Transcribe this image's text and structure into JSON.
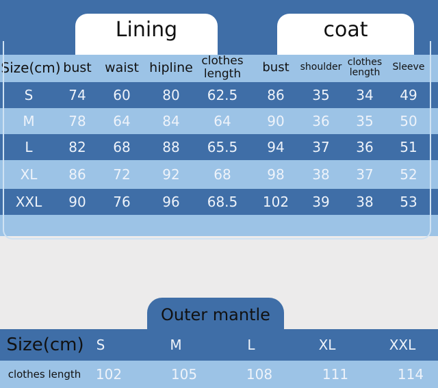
{
  "lining_title": "Lining",
  "coat_title": "coat",
  "headers": [
    "Size(cm)",
    "bust",
    "waist",
    "hipline",
    "clothes length",
    "bust",
    "shoulder",
    "clothes length",
    "Sleeve"
  ],
  "rows": [
    [
      "S",
      "74",
      "60",
      "80",
      "62.5",
      "86",
      "35",
      "34",
      "49"
    ],
    [
      "M",
      "78",
      "64",
      "84",
      "64",
      "90",
      "36",
      "35",
      "50"
    ],
    [
      "L",
      "82",
      "68",
      "88",
      "65.5",
      "94",
      "37",
      "36",
      "51"
    ],
    [
      "XL",
      "86",
      "72",
      "92",
      "68",
      "98",
      "38",
      "37",
      "52"
    ],
    [
      "XXL",
      "90",
      "76",
      "96",
      "68.5",
      "102",
      "39",
      "38",
      "53"
    ]
  ],
  "mantle": {
    "title": "Outer mantle",
    "size_label": "Size(cm)",
    "sizes": [
      "S",
      "M",
      "L",
      "XL",
      "XXL"
    ],
    "length_label": "clothes length",
    "lengths": [
      "102",
      "105",
      "108",
      "111",
      "114"
    ]
  },
  "colors": {
    "dark_blue": "#3f6ea7",
    "light_blue": "#9cc3e6"
  }
}
